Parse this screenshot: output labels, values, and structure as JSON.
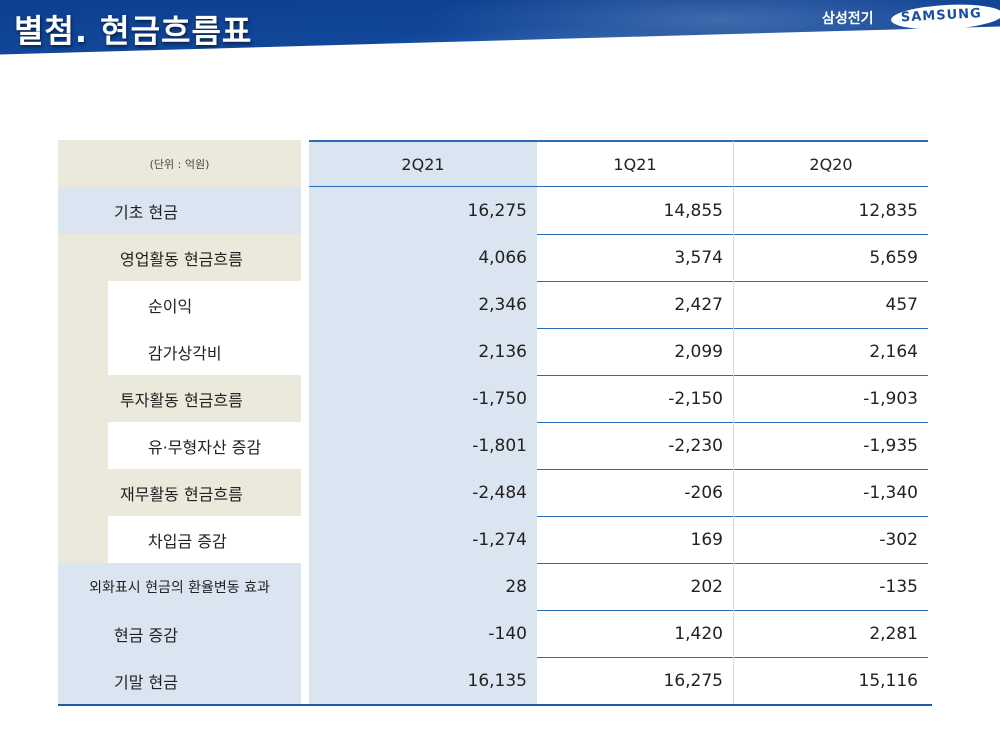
{
  "header": {
    "title": "별첨. 현금흐름표",
    "company_ko": "삼성전기",
    "logo_text": "SAMSUNG"
  },
  "table": {
    "unit": "(단위 : 억원)",
    "columns": [
      "2Q21",
      "1Q21",
      "2Q20"
    ],
    "rows": [
      {
        "label": "기초 현금",
        "values": [
          "16,275",
          "14,855",
          "12,835"
        ]
      },
      {
        "label": "영업활동 현금흐름",
        "values": [
          "4,066",
          "3,574",
          "5,659"
        ]
      },
      {
        "label": "순이익",
        "values": [
          "2,346",
          "2,427",
          "457"
        ]
      },
      {
        "label": "감가상각비",
        "values": [
          "2,136",
          "2,099",
          "2,164"
        ]
      },
      {
        "label": "투자활동 현금흐름",
        "values": [
          "-1,750",
          "-2,150",
          "-1,903"
        ]
      },
      {
        "label": "유·무형자산 증감",
        "values": [
          "-1,801",
          "-2,230",
          "-1,935"
        ]
      },
      {
        "label": "재무활동 현금흐름",
        "values": [
          "-2,484",
          "-206",
          "-1,340"
        ]
      },
      {
        "label": "차입금 증감",
        "values": [
          "-1,274",
          "169",
          "-302"
        ]
      },
      {
        "label": "외화표시 현금의 환율변동 효과",
        "values": [
          "28",
          "202",
          "-135"
        ]
      },
      {
        "label": "현금 증감",
        "values": [
          "-140",
          "1,420",
          "2,281"
        ]
      },
      {
        "label": "기말 현금",
        "values": [
          "16,135",
          "16,275",
          "15,116"
        ]
      }
    ]
  }
}
